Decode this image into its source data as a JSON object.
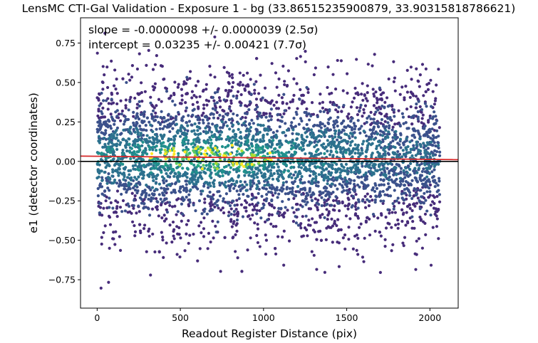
{
  "chart_data": {
    "type": "scatter",
    "title": "LensMC CTI-Gal Validation - Exposure 1 - bg (33.86515235900879, 33.90315818786621)",
    "xlabel": "Readout Register Distance (pix)",
    "ylabel": "e1 (detector coordinates)",
    "xlim": [
      -100,
      2170
    ],
    "ylim": [
      -0.93,
      0.91
    ],
    "xticks": [
      0,
      500,
      1000,
      1500,
      2000
    ],
    "xtick_labels": [
      "0",
      "500",
      "1000",
      "1500",
      "2000"
    ],
    "yticks": [
      0.75,
      0.5,
      0.25,
      0.0,
      -0.25,
      -0.5,
      -0.75
    ],
    "ytick_labels": [
      "0.75",
      "0.50",
      "0.25",
      "0.00",
      "−0.25",
      "−0.50",
      "−0.75"
    ],
    "grid": false,
    "annotations": [
      "slope = -0.0000098 +/- 0.0000039 (2.5σ)",
      "intercept = 0.03235 +/- 0.00421 (7.7σ)"
    ],
    "fit_line": {
      "slope": -9.8e-06,
      "intercept": 0.03235,
      "color": "#d62728"
    },
    "zero_line": {
      "y": 0.0,
      "color": "#000000"
    },
    "points": {
      "x_range": [
        0,
        2060
      ],
      "y_range": [
        -0.85,
        0.82
      ],
      "colormap": "viridis",
      "density_colored": true
    }
  }
}
